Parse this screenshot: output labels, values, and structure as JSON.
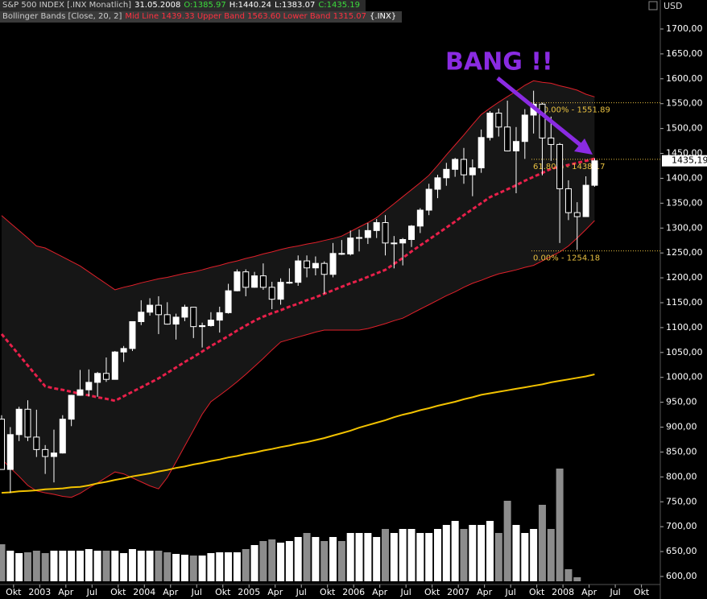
{
  "chart_data": {
    "type": "candlestick",
    "title": "S&P 500 INDEX [.INX  Monatlich]",
    "date": "31.05.2008",
    "ohlc_labels": [
      "O:1385.97",
      "H:1440.24",
      "L:1383.07",
      "C:1435.19"
    ],
    "indicator": "Bollinger Bands [Close, 20, 2]",
    "indicator_values": "Mid Line 1439.33 Upper Band 1563.60 Lower Band 1315.07",
    "indicator_symbol": "{.INX}",
    "y_axis_label": "USD",
    "annotation": "BANG !!",
    "categories": [
      null,
      "Okt",
      null,
      null,
      "2003",
      null,
      null,
      "Apr",
      null,
      null,
      "Jul",
      null,
      null,
      "Okt",
      null,
      null,
      "2004",
      null,
      null,
      "Apr",
      null,
      null,
      "Jul",
      null,
      null,
      "Okt",
      null,
      null,
      "2005",
      null,
      null,
      "Apr",
      null,
      null,
      "Jul",
      null,
      null,
      "Okt",
      null,
      null,
      "2006",
      null,
      null,
      "Apr",
      null,
      null,
      "Jul",
      null,
      null,
      "Okt",
      null,
      null,
      "2007",
      null,
      null,
      "Apr",
      null,
      null,
      "Jul",
      null,
      null,
      "Okt",
      null,
      null,
      "2008",
      null,
      null,
      "Apr",
      null,
      null,
      "Jul",
      null,
      null,
      "Okt",
      null,
      null
    ],
    "open": [
      916,
      815,
      885,
      936,
      880,
      855,
      841,
      848,
      916,
      964,
      975,
      990,
      1008,
      996,
      1051,
      1058,
      1112,
      1131,
      1145,
      1126,
      1107,
      1121,
      1141,
      1102,
      1104,
      1115,
      1130,
      1174,
      1212,
      1181,
      1204,
      1181,
      1157,
      1191,
      1191,
      1234,
      1220,
      1229,
      1207,
      1249,
      1248,
      1280,
      1281,
      1295,
      1311,
      1270,
      1270,
      1277,
      1304,
      1336,
      1378,
      1401,
      1418,
      1438,
      1407,
      1421,
      1482,
      1531,
      1503,
      1455,
      1474,
      1527,
      1549,
      1481,
      1468,
      1379,
      1331,
      1323,
      1385.97,
      null,
      null,
      null,
      null,
      null,
      null,
      null
    ],
    "high": [
      924,
      900,
      941,
      954,
      935,
      864,
      895,
      924,
      965,
      1015,
      1016,
      1011,
      1040,
      1053,
      1063,
      1112,
      1155,
      1159,
      1163,
      1151,
      1128,
      1146,
      1141,
      1110,
      1131,
      1142,
      1188,
      1217,
      1217,
      1212,
      1229,
      1192,
      1199,
      1219,
      1245,
      1245,
      1243,
      1233,
      1270,
      1276,
      1295,
      1297,
      1310,
      1318,
      1326,
      1284,
      1280,
      1306,
      1340,
      1389,
      1407,
      1431,
      1441,
      1461,
      1438,
      1498,
      1535,
      1540,
      1556,
      1503,
      1539,
      1576,
      1552,
      1524,
      1471,
      1396,
      1352,
      1404,
      1440.24,
      null,
      null,
      null,
      null,
      null,
      null,
      null
    ],
    "low": [
      815,
      768,
      872,
      872,
      840,
      806,
      789,
      847,
      902,
      963,
      962,
      961,
      991,
      996,
      1031,
      1053,
      1105,
      1124,
      1087,
      1106,
      1076,
      1113,
      1079,
      1060,
      1102,
      1090,
      1128,
      1173,
      1163,
      1180,
      1176,
      1137,
      1146,
      1188,
      1184,
      1201,
      1205,
      1168,
      1201,
      1246,
      1245,
      1253,
      1268,
      1280,
      1245,
      1219,
      1225,
      1262,
      1290,
      1326,
      1360,
      1385,
      1403,
      1389,
      1364,
      1411,
      1476,
      1484,
      1454,
      1370,
      1439,
      1490,
      1406,
      1435,
      1270,
      1316,
      1256,
      1324,
      1383.07,
      null,
      null,
      null,
      null,
      null,
      null,
      null
    ],
    "close": [
      815,
      885,
      936,
      880,
      855,
      841,
      848,
      916,
      964,
      975,
      990,
      1008,
      996,
      1051,
      1058,
      1112,
      1131,
      1145,
      1126,
      1107,
      1121,
      1141,
      1102,
      1104,
      1115,
      1130,
      1174,
      1212,
      1181,
      1204,
      1181,
      1157,
      1191,
      1191,
      1234,
      1220,
      1229,
      1207,
      1249,
      1248,
      1280,
      1281,
      1295,
      1311,
      1270,
      1270,
      1277,
      1304,
      1336,
      1378,
      1401,
      1418,
      1438,
      1407,
      1421,
      1482,
      1531,
      1503,
      1455,
      1474,
      1527,
      1549,
      1481,
      1468,
      1379,
      1331,
      1323,
      1386,
      1435.19,
      null,
      null,
      null,
      null,
      null,
      null,
      null
    ],
    "up_color": "#ffffff",
    "down_color": "#000000",
    "wick_color": "#ffffff",
    "bands": {
      "upper": [
        1325,
        1310,
        1295,
        1280,
        1264,
        1260,
        1251,
        1242,
        1233,
        1224,
        1212,
        1200,
        1188,
        1176,
        1181,
        1185,
        1190,
        1194,
        1198,
        1201,
        1205,
        1209,
        1212,
        1216,
        1221,
        1225,
        1230,
        1234,
        1239,
        1243,
        1248,
        1252,
        1257,
        1261,
        1264,
        1268,
        1271,
        1275,
        1279,
        1284,
        1293,
        1302,
        1311,
        1321,
        1335,
        1349,
        1363,
        1377,
        1391,
        1406,
        1426,
        1447,
        1467,
        1487,
        1508,
        1528,
        1541,
        1553,
        1564,
        1575,
        1587,
        1596,
        1593,
        1591,
        1586,
        1582,
        1577,
        1569,
        1563.6,
        null,
        null,
        null,
        null,
        null,
        null,
        null
      ],
      "mid": [
        1087,
        1066,
        1045,
        1024,
        1003,
        982,
        978,
        975,
        971,
        967,
        964,
        960,
        957,
        953,
        962,
        971,
        980,
        989,
        998,
        1009,
        1020,
        1031,
        1041,
        1052,
        1063,
        1073,
        1083,
        1094,
        1104,
        1114,
        1122,
        1129,
        1135,
        1142,
        1148,
        1155,
        1161,
        1168,
        1175,
        1182,
        1189,
        1195,
        1202,
        1209,
        1216,
        1228,
        1240,
        1253,
        1265,
        1277,
        1289,
        1301,
        1313,
        1326,
        1338,
        1350,
        1362,
        1370,
        1378,
        1386,
        1395,
        1403,
        1411,
        1419,
        1423,
        1427,
        1431,
        1435,
        1439.33,
        null,
        null,
        null,
        null,
        null,
        null,
        null
      ],
      "lower": [
        836,
        818,
        801,
        783,
        772,
        768,
        765,
        761,
        759,
        767,
        778,
        788,
        799,
        810,
        806,
        798,
        790,
        782,
        776,
        799,
        830,
        862,
        894,
        926,
        951,
        964,
        977,
        991,
        1006,
        1022,
        1038,
        1055,
        1071,
        1076,
        1081,
        1086,
        1091,
        1095,
        1095,
        1095,
        1095,
        1095,
        1098,
        1103,
        1108,
        1114,
        1119,
        1128,
        1137,
        1146,
        1155,
        1164,
        1172,
        1181,
        1189,
        1195,
        1202,
        1208,
        1212,
        1216,
        1221,
        1225,
        1234,
        1243,
        1252,
        1264,
        1280,
        1297,
        1315.07,
        null,
        null,
        null,
        null,
        null,
        null,
        null
      ],
      "band_color": "#e0202a",
      "mid_color": "#e8204a",
      "fill_color": "#161616"
    },
    "moving_average": {
      "color": "#f2c200",
      "values": [
        768,
        769,
        771,
        772,
        773,
        775,
        776,
        777,
        779,
        780,
        783,
        787,
        790,
        794,
        797,
        801,
        804,
        807,
        811,
        814,
        818,
        821,
        825,
        828,
        832,
        835,
        839,
        842,
        846,
        849,
        853,
        856,
        860,
        863,
        867,
        870,
        874,
        878,
        883,
        888,
        893,
        899,
        904,
        909,
        914,
        920,
        925,
        929,
        934,
        938,
        943,
        947,
        951,
        956,
        960,
        965,
        968,
        971,
        974,
        977,
        980,
        983,
        986,
        990,
        993,
        996,
        999,
        1002,
        1006,
        null,
        null,
        null,
        null,
        null,
        null,
        null
      ]
    },
    "volume": {
      "ylim": [
        0,
        150
      ],
      "up_color": "#ffffff",
      "down_color": "#8c8c8c",
      "values": [
        46,
        38,
        35,
        36,
        38,
        35,
        38,
        38,
        38,
        38,
        40,
        38,
        38,
        38,
        35,
        40,
        38,
        38,
        38,
        36,
        34,
        33,
        32,
        32,
        35,
        36,
        36,
        36,
        40,
        45,
        50,
        52,
        48,
        50,
        55,
        60,
        55,
        50,
        55,
        50,
        60,
        60,
        60,
        55,
        65,
        60,
        65,
        65,
        60,
        60,
        65,
        70,
        75,
        65,
        70,
        70,
        75,
        60,
        100,
        70,
        60,
        65,
        95,
        65,
        140,
        15,
        5,
        0,
        0,
        null,
        null,
        null,
        null,
        null,
        null,
        null
      ]
    },
    "fib_levels": [
      {
        "value": 1551.89,
        "label": "100.00% - 1551.89"
      },
      {
        "value": 1438.17,
        "label": "61.80% - 1438.17"
      },
      {
        "value": 1254.18,
        "label": "0.00% - 1254.18"
      }
    ],
    "fib_color": "#e8c040",
    "last_price": {
      "value": 1435.19,
      "label": "1435,19"
    },
    "annotation_color": "#8a2be2",
    "ylim": [
      583.8,
      1725.9
    ],
    "yticks": [
      {
        "value": 600,
        "label": "600,00"
      },
      {
        "value": 650,
        "label": "650,00"
      },
      {
        "value": 700,
        "label": "700,00"
      },
      {
        "value": 750,
        "label": "750,00"
      },
      {
        "value": 800,
        "label": "800,00"
      },
      {
        "value": 850,
        "label": "850,00"
      },
      {
        "value": 900,
        "label": "900,00"
      },
      {
        "value": 950,
        "label": "950,00"
      },
      {
        "value": 1000,
        "label": "1000,00"
      },
      {
        "value": 1050,
        "label": "1050,00"
      },
      {
        "value": 1100,
        "label": "1100,00"
      },
      {
        "value": 1150,
        "label": "1150,00"
      },
      {
        "value": 1200,
        "label": "1200,00"
      },
      {
        "value": 1250,
        "label": "1250,00"
      },
      {
        "value": 1300,
        "label": "1300,00"
      },
      {
        "value": 1350,
        "label": "1350,00"
      },
      {
        "value": 1400,
        "label": "1400,00"
      },
      {
        "value": 1450,
        "label": "1450,00"
      },
      {
        "value": 1500,
        "label": "1500,00"
      },
      {
        "value": 1550,
        "label": "1550,00"
      },
      {
        "value": 1600,
        "label": "1600,00"
      },
      {
        "value": 1650,
        "label": "1650,00"
      },
      {
        "value": 1700,
        "label": "1700,00"
      }
    ],
    "grid": false
  }
}
